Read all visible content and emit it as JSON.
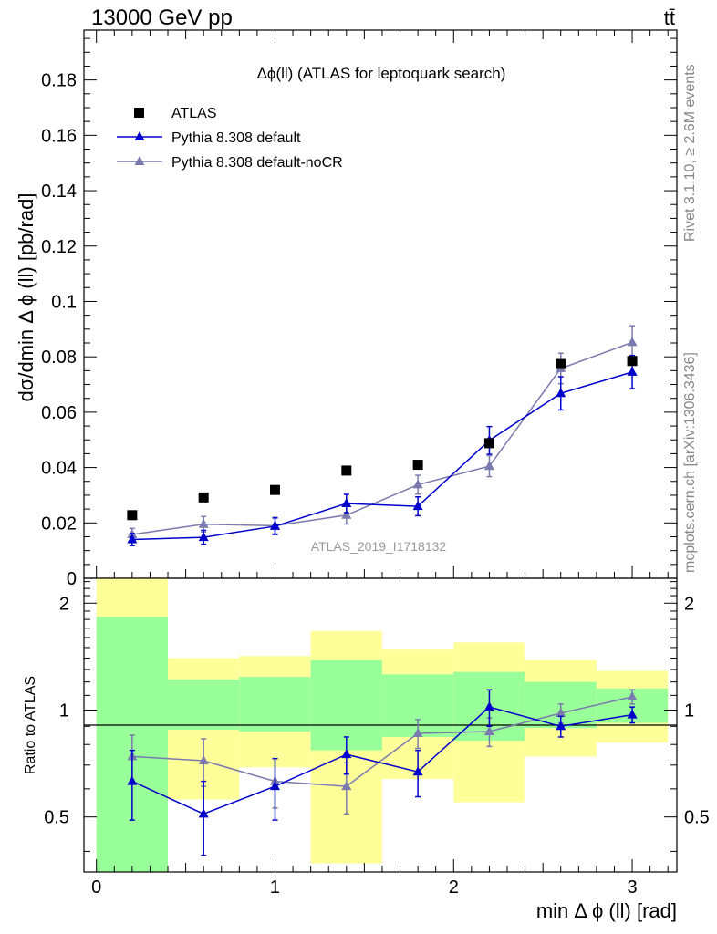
{
  "header": {
    "energy_label": "13000 GeV pp",
    "process_label": "tt̄"
  },
  "side_labels": {
    "rivet": "Rivet 3.1.10, ≥ 2.6M events",
    "source": "mcplots.cern.ch [arXiv:1306.3436]"
  },
  "colors": {
    "atlas": "#000000",
    "default": "#0000cc",
    "nocr": "#7a7aae",
    "band_outer": "#ffff99",
    "band_inner": "#99ff99"
  },
  "chart_data": [
    {
      "type": "scatter",
      "title": "Δϕ(ll) (ATLAS for leptoquark search)",
      "watermark": "ATLAS_2019_I1718132",
      "xlabel": "min Δ ϕ (ll) [rad]",
      "ylabel": "dσ/dmin Δ ϕ (ll) [pb/rad]",
      "xlim": [
        -0.07,
        3.25
      ],
      "ylim": [
        0.0,
        0.198
      ],
      "yticks": [
        0,
        0.02,
        0.04,
        0.06,
        0.08,
        0.1,
        0.12,
        0.14,
        0.16,
        0.18
      ],
      "ytick_labels": [
        "0",
        "0.02",
        "0.04",
        "0.06",
        "0.08",
        "0.1",
        "0.12",
        "0.14",
        "0.16",
        "0.18"
      ],
      "legend": [
        "ATLAS",
        "Pythia 8.308 default",
        "Pythia 8.308 default-noCR"
      ],
      "bin_edges": [
        0,
        0.4,
        0.8,
        1.2,
        1.6,
        2.0,
        2.4,
        2.8,
        3.2
      ],
      "x": [
        0.2,
        0.6,
        1.0,
        1.4,
        1.8,
        2.2,
        2.6,
        3.0
      ],
      "series": [
        {
          "name": "ATLAS",
          "values": [
            0.0228,
            0.0292,
            0.0319,
            0.0389,
            0.041,
            0.0488,
            0.0774,
            0.0785
          ]
        },
        {
          "name": "Pythia 8.308 default",
          "values": [
            0.014,
            0.0148,
            0.0188,
            0.027,
            0.026,
            0.0498,
            0.0668,
            0.0745
          ],
          "errors": [
            0.0022,
            0.0025,
            0.003,
            0.0033,
            0.0034,
            0.005,
            0.006,
            0.006
          ]
        },
        {
          "name": "Pythia 8.308 default-noCR",
          "values": [
            0.0158,
            0.0195,
            0.019,
            0.0228,
            0.0338,
            0.0405,
            0.0758,
            0.0852
          ],
          "errors": [
            0.0022,
            0.0028,
            0.003,
            0.0032,
            0.0034,
            0.0038,
            0.0055,
            0.006
          ]
        }
      ]
    },
    {
      "type": "scatter",
      "xlabel": "min Δ ϕ (ll) [rad]",
      "ylabel": "Ratio to ATLAS",
      "xlim": [
        -0.07,
        3.25
      ],
      "ylim": [
        0.35,
        2.35
      ],
      "xticks": [
        0,
        1,
        2,
        3
      ],
      "xtick_labels": [
        "0",
        "1",
        "2",
        "3"
      ],
      "yticks": [
        0.5,
        1,
        2
      ],
      "ytick_labels": [
        "0.5",
        "1",
        "2"
      ],
      "bin_edges": [
        0,
        0.4,
        0.8,
        1.2,
        1.6,
        2.0,
        2.4,
        2.8,
        3.2
      ],
      "band_outer": [
        [
          0.35,
          2.35
        ],
        [
          0.56,
          1.4
        ],
        [
          0.69,
          1.42
        ],
        [
          0.37,
          1.67
        ],
        [
          0.64,
          1.48
        ],
        [
          0.55,
          1.55
        ],
        [
          0.74,
          1.38
        ],
        [
          0.81,
          1.29
        ]
      ],
      "band_inner": [
        [
          0.35,
          1.83
        ],
        [
          0.88,
          1.22
        ],
        [
          0.87,
          1.24
        ],
        [
          0.77,
          1.38
        ],
        [
          0.84,
          1.26
        ],
        [
          0.82,
          1.28
        ],
        [
          0.89,
          1.2
        ],
        [
          0.92,
          1.15
        ]
      ],
      "x": [
        0.2,
        0.6,
        1.0,
        1.4,
        1.8,
        2.2,
        2.6,
        3.0
      ],
      "series": [
        {
          "name": "Pythia 8.308 default",
          "values": [
            0.63,
            0.51,
            0.61,
            0.75,
            0.67,
            1.02,
            0.9,
            0.97
          ],
          "errors": [
            0.14,
            0.12,
            0.12,
            0.09,
            0.1,
            0.12,
            0.06,
            0.05
          ]
        },
        {
          "name": "Pythia 8.308 default-noCR",
          "values": [
            0.74,
            0.72,
            0.63,
            0.61,
            0.86,
            0.87,
            0.98,
            1.09
          ],
          "errors": [
            0.11,
            0.11,
            0.1,
            0.1,
            0.08,
            0.08,
            0.06,
            0.05
          ]
        }
      ]
    }
  ]
}
